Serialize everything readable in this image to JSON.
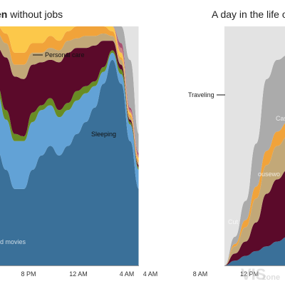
{
  "titles": {
    "left_bold": "en",
    "left_rest": " without jobs",
    "right": "A day in the life of :"
  },
  "labels": {
    "personal_care": "Personal care",
    "sleeping": "Sleeping",
    "movies": "d movies",
    "traveling": "Traveling",
    "cas": "Cas",
    "housework": "ousewo",
    "cut": "Cut"
  },
  "watermark": {
    "big": "VIS",
    "small": "zone"
  },
  "colors": {
    "background_band": "#e3e3e3",
    "tv_movies": "#3a7099",
    "sleep_light": "#62a2d6",
    "green": "#688c24",
    "maroon": "#5b0a2a",
    "tan": "#c2a878",
    "orange": "#f1a33a",
    "yellow": "#fcc84a",
    "pink": "#cd8486",
    "mauve": "#a85072",
    "grey": "#ababab",
    "top_green": "#b3cf3c",
    "top_pink": "#cf4572"
  },
  "chart_data": [
    {
      "type": "area",
      "title": "en without jobs",
      "x_ticks": [
        "8 PM",
        "12 AM",
        "4 AM",
        "4 AM"
      ],
      "annotations": [
        "Personal care",
        "Sleeping",
        "d movies"
      ],
      "series": [
        {
          "color_key": "tv_movies",
          "values": [
            0.48,
            0.4,
            0.32,
            0.32,
            0.4,
            0.46,
            0.5,
            0.46,
            0.5,
            0.55,
            0.6,
            0.66,
            0.76,
            0.86,
            0.76,
            0.52,
            0.32
          ]
        },
        {
          "color_key": "sleep_light",
          "values": [
            0.24,
            0.21,
            0.2,
            0.2,
            0.2,
            0.19,
            0.17,
            0.16,
            0.15,
            0.14,
            0.12,
            0.09,
            0.05,
            0.03,
            0.04,
            0.07,
            0.08
          ]
        },
        {
          "color_key": "green",
          "values": [
            0.03,
            0.04,
            0.03,
            0.02,
            0.04,
            0.02,
            0.03,
            0.03,
            0.03,
            0.04,
            0.03,
            0.02,
            0.02,
            0.01,
            0.02,
            0.01,
            0.01
          ]
        },
        {
          "color_key": "maroon",
          "values": [
            0.16,
            0.22,
            0.24,
            0.24,
            0.2,
            0.18,
            0.16,
            0.2,
            0.21,
            0.18,
            0.16,
            0.15,
            0.11,
            0.04,
            0.02,
            0.01,
            0.01
          ]
        },
        {
          "color_key": "tan",
          "values": [
            0.06,
            0.06,
            0.05,
            0.06,
            0.05,
            0.04,
            0.05,
            0.05,
            0.05,
            0.04,
            0.05,
            0.04,
            0.03,
            0.02,
            0.02,
            0.01,
            0.01
          ]
        },
        {
          "color_key": "orange",
          "values": [
            0.05,
            0.04,
            0.05,
            0.05,
            0.04,
            0.04,
            0.05,
            0.04,
            0.04,
            0.05,
            0.04,
            0.04,
            0.03,
            0.02,
            0.01,
            0.01,
            0.01
          ]
        },
        {
          "color_key": "yellow",
          "values": [
            0.1,
            0.12,
            0.13,
            0.12,
            0.1,
            0.12,
            0.13,
            0.12,
            0.1,
            0.1,
            0.11,
            0.09,
            0.08,
            0.04,
            0.02,
            0.01,
            0.01
          ]
        },
        {
          "color_key": "pink",
          "values": [
            0.08,
            0.08,
            0.07,
            0.08,
            0.07,
            0.08,
            0.07,
            0.08,
            0.07,
            0.06,
            0.07,
            0.07,
            0.05,
            0.03,
            0.02,
            0.01,
            0.01
          ]
        },
        {
          "color_key": "mauve",
          "values": [
            0.07,
            0.08,
            0.07,
            0.08,
            0.07,
            0.07,
            0.08,
            0.07,
            0.06,
            0.07,
            0.06,
            0.06,
            0.05,
            0.03,
            0.02,
            0.01,
            0.01
          ]
        },
        {
          "color_key": "grey",
          "values": [
            0.16,
            0.1,
            0.1,
            0.1,
            0.12,
            0.1,
            0.07,
            0.07,
            0.07,
            0.07,
            0.06,
            0.08,
            0.1,
            0.2,
            0.4,
            0.2,
            0.08
          ]
        },
        {
          "color_key": "background_band",
          "values": [
            0.05,
            0.06,
            0.04,
            0.04,
            0.06,
            0.08,
            0.1,
            0.11,
            0.11,
            0.13,
            0.17,
            0.22,
            0.3,
            0.35,
            0.35,
            0.66,
            0.8
          ]
        },
        {
          "color_key": "top_green",
          "values": [
            0.02,
            0.03,
            0.04,
            0.03,
            0.02,
            0.03,
            0.02,
            0.02,
            0.02,
            0.02,
            0.02,
            0.01,
            0.01,
            0.01,
            0.01,
            0.0,
            0.0
          ]
        },
        {
          "color_key": "top_pink",
          "values": [
            0.01,
            0.01,
            0.01,
            0.01,
            0.01,
            0.01,
            0.01,
            0.01,
            0.01,
            0.01,
            0.01,
            0.01,
            0.01,
            0.01,
            0.01,
            0.0,
            0.0
          ]
        }
      ]
    },
    {
      "type": "area",
      "title": "A day in the life of :",
      "x_ticks": [
        "8 AM",
        "12 PM"
      ],
      "annotations": [
        "Traveling",
        "Cas",
        "ousewo",
        "Cut"
      ],
      "series": [
        {
          "color_key": "tv_movies",
          "values": [
            0.0,
            0.02,
            0.04,
            0.06,
            0.08,
            0.1,
            0.12
          ]
        },
        {
          "color_key": "maroon",
          "values": [
            0.0,
            0.03,
            0.06,
            0.12,
            0.22,
            0.26,
            0.28
          ]
        },
        {
          "color_key": "tan",
          "values": [
            0.0,
            0.03,
            0.06,
            0.1,
            0.12,
            0.14,
            0.14
          ]
        },
        {
          "color_key": "orange",
          "values": [
            0.0,
            0.01,
            0.03,
            0.05,
            0.06,
            0.06,
            0.06
          ]
        },
        {
          "color_key": "grey",
          "values": [
            0.0,
            0.03,
            0.08,
            0.18,
            0.3,
            0.3,
            0.28
          ]
        },
        {
          "color_key": "background_band",
          "values": [
            1.0,
            0.88,
            0.73,
            0.49,
            0.22,
            0.14,
            0.12
          ]
        }
      ]
    }
  ]
}
